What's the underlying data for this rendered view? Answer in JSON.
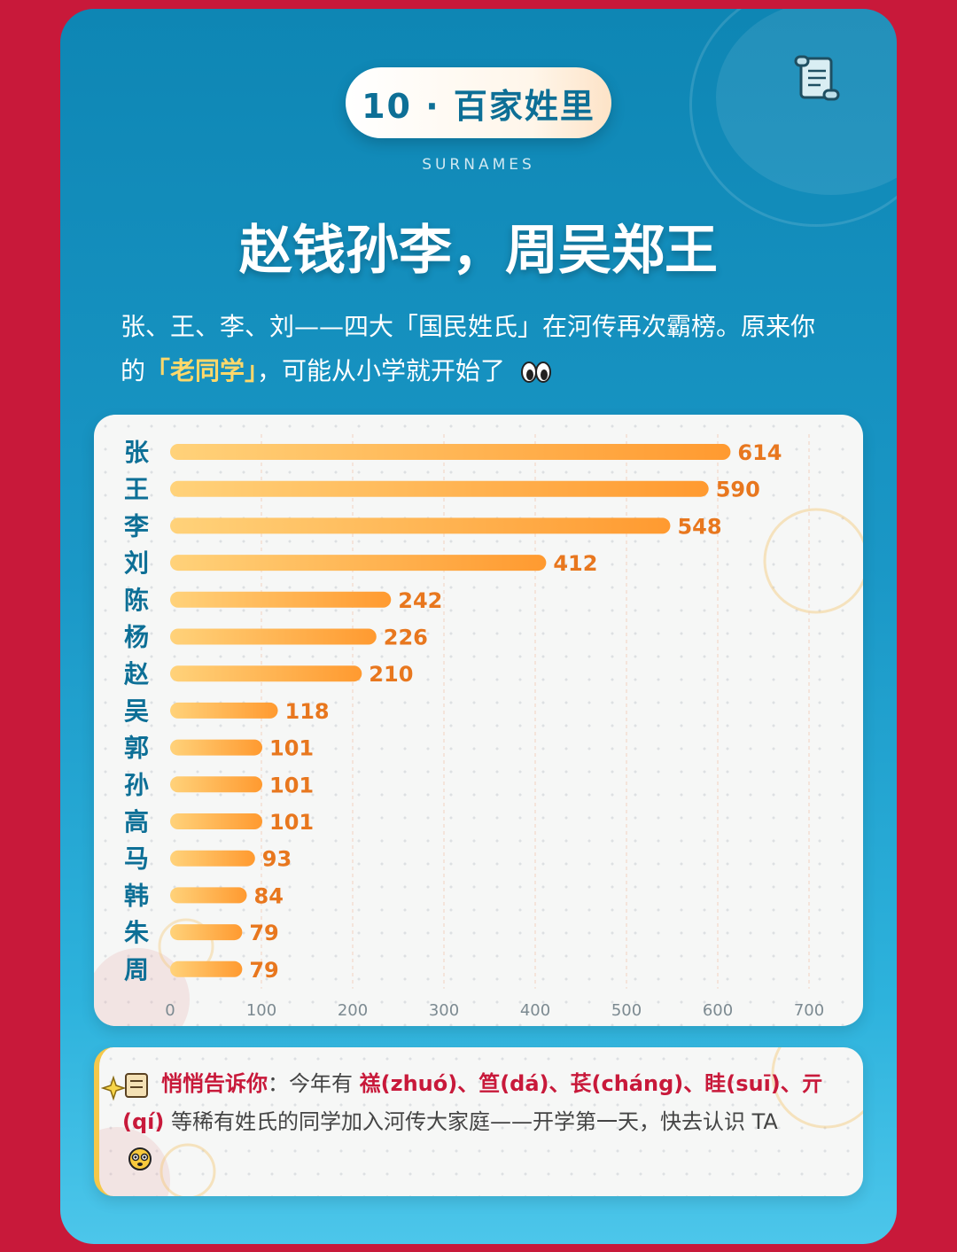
{
  "header": {
    "badge": "10 · 百家姓里",
    "eyebrow": "SURNAMES",
    "title": "赵钱孙李，周吴郑王"
  },
  "intro": {
    "text_before": "张、王、李、刘——四大「国民姓氏」在河传再次霸榜。原来你的",
    "highlight": "「老同学」",
    "text_after": "，可能从小学就开始了"
  },
  "chart_data": {
    "type": "bar",
    "orientation": "horizontal",
    "categories": [
      "张",
      "王",
      "李",
      "刘",
      "陈",
      "杨",
      "赵",
      "吴",
      "郭",
      "孙",
      "高",
      "马",
      "韩",
      "朱",
      "周"
    ],
    "values": [
      614,
      590,
      548,
      412,
      242,
      226,
      210,
      118,
      101,
      101,
      101,
      93,
      84,
      79,
      79
    ],
    "xticks": [
      0,
      100,
      200,
      300,
      400,
      500,
      600,
      700
    ],
    "xlim": [
      0,
      700
    ],
    "grid": true,
    "data_labels": true
  },
  "tip": {
    "title": "悄悄告诉你",
    "lead": "：今年有 ",
    "rare_surnames": "禚(zhuó)、笪(dá)、苌(cháng)、眭(suī)、亓(qí)",
    "rest": " 等稀有姓氏的同学加入河传大家庭——开学第一天，快去认识 TA"
  },
  "colors": {
    "background": "#c8193a",
    "card_top": "#0e86b4",
    "card_bottom": "#4cc6ea",
    "category_text": "#0d6f96",
    "bar_start": "#ffd27a",
    "bar_end": "#ff9a30",
    "value_text": "#e8771e",
    "highlight": "#ffd86a",
    "accent": "#c8193a"
  },
  "icons": [
    "scroll-icon",
    "eyes-emoji-icon",
    "sparkles-icon",
    "hushed-face-icon"
  ]
}
